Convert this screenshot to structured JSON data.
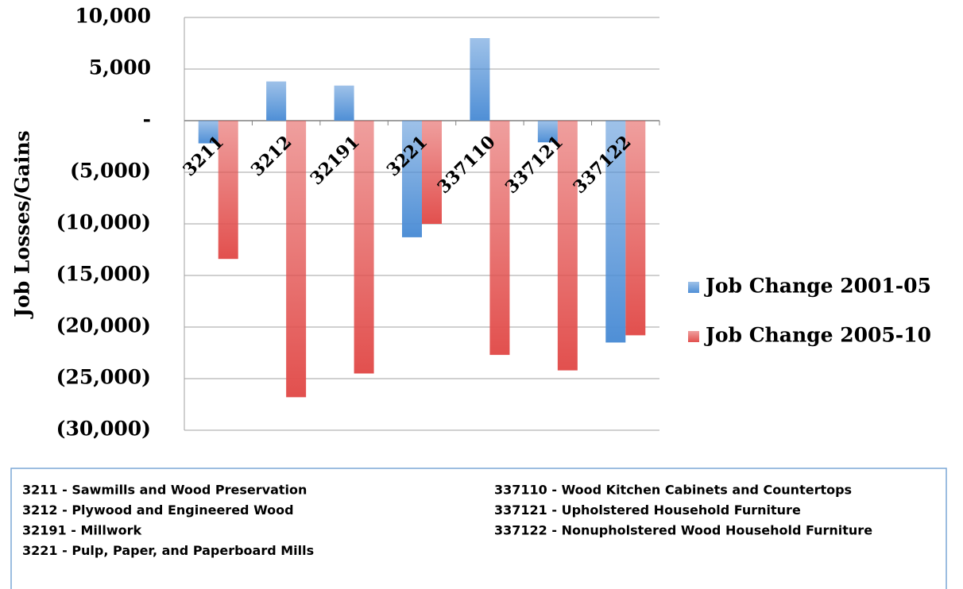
{
  "chart_data": {
    "type": "bar",
    "y_label": "Job Losses/Gains",
    "categories": [
      "3211",
      "3212",
      "32191",
      "3221",
      "337110",
      "337121",
      "337122"
    ],
    "series": [
      {
        "name": "Job Change 2001-05",
        "color": "#4f8fd6",
        "values": [
          -2200,
          3800,
          3400,
          -11300,
          8000,
          -2100,
          -21500
        ]
      },
      {
        "name": "Job Change 2005-10",
        "color": "#e2504e",
        "values": [
          -13400,
          -26800,
          -24500,
          -10000,
          -22700,
          -24200,
          -20800
        ]
      }
    ],
    "ylim": [
      -30000,
      10000
    ],
    "yticks": [
      {
        "value": 10000,
        "label": "10,000"
      },
      {
        "value": 5000,
        "label": "5,000"
      },
      {
        "value": 0,
        "label": "-"
      },
      {
        "value": -5000,
        "label": "(5,000)"
      },
      {
        "value": -10000,
        "label": "(10,000)"
      },
      {
        "value": -15000,
        "label": "(15,000)"
      },
      {
        "value": -20000,
        "label": "(20,000)"
      },
      {
        "value": -25000,
        "label": "(25,000)"
      },
      {
        "value": -30000,
        "label": "(30,000)"
      }
    ],
    "grid": true,
    "legend": "right",
    "annotations": [
      "3211 - Sawmills and Wood Preservation",
      "3212 - Plywood and Engineered Wood",
      "32191 - Millwork",
      "3221 - Pulp, Paper, and Paperboard Mills",
      "337110 - Wood Kitchen Cabinets and Countertops",
      "337121 - Upholstered Household Furniture",
      "337122 - Nonupholstered Wood Household Furniture"
    ]
  }
}
